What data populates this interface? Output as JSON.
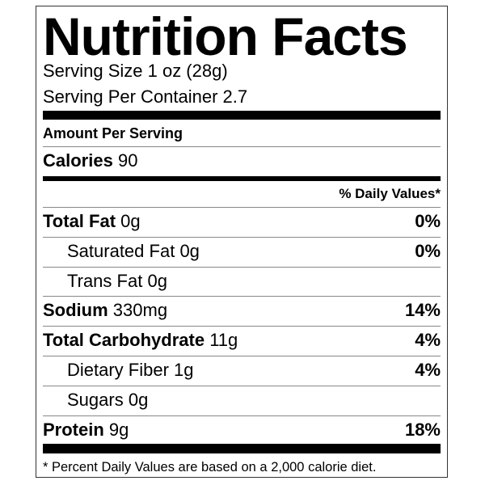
{
  "title": "Nutrition Facts",
  "serving_size": "Serving Size 1 oz  (28g)",
  "servings_per_container": "Serving Per Container 2.7",
  "amount_per_serving": "Amount Per Serving",
  "calories": {
    "label": "Calories",
    "value": "90"
  },
  "daily_values_header": "% Daily Values*",
  "nutrients": [
    {
      "label": "Total Fat",
      "amount": "0g",
      "dv": "0%",
      "bold": true,
      "indent": false
    },
    {
      "label": "Saturated Fat",
      "amount": "0g",
      "dv": "0%",
      "bold": false,
      "indent": true
    },
    {
      "label": "Trans Fat",
      "amount": "0g",
      "dv": "",
      "bold": false,
      "indent": true
    },
    {
      "label": "Sodium",
      "amount": "330mg",
      "dv": "14%",
      "bold": true,
      "indent": false
    },
    {
      "label": "Total Carbohydrate",
      "amount": "11g",
      "dv": "4%",
      "bold": true,
      "indent": false
    },
    {
      "label": "Dietary Fiber",
      "amount": "1g",
      "dv": "4%",
      "bold": false,
      "indent": true
    },
    {
      "label": "Sugars",
      "amount": "0g",
      "dv": "",
      "bold": false,
      "indent": true
    },
    {
      "label": "Protein",
      "amount": "9g",
      "dv": "18%",
      "bold": true,
      "indent": false
    }
  ],
  "footnote": "* Percent Daily Values are based on a 2,000 calorie diet."
}
